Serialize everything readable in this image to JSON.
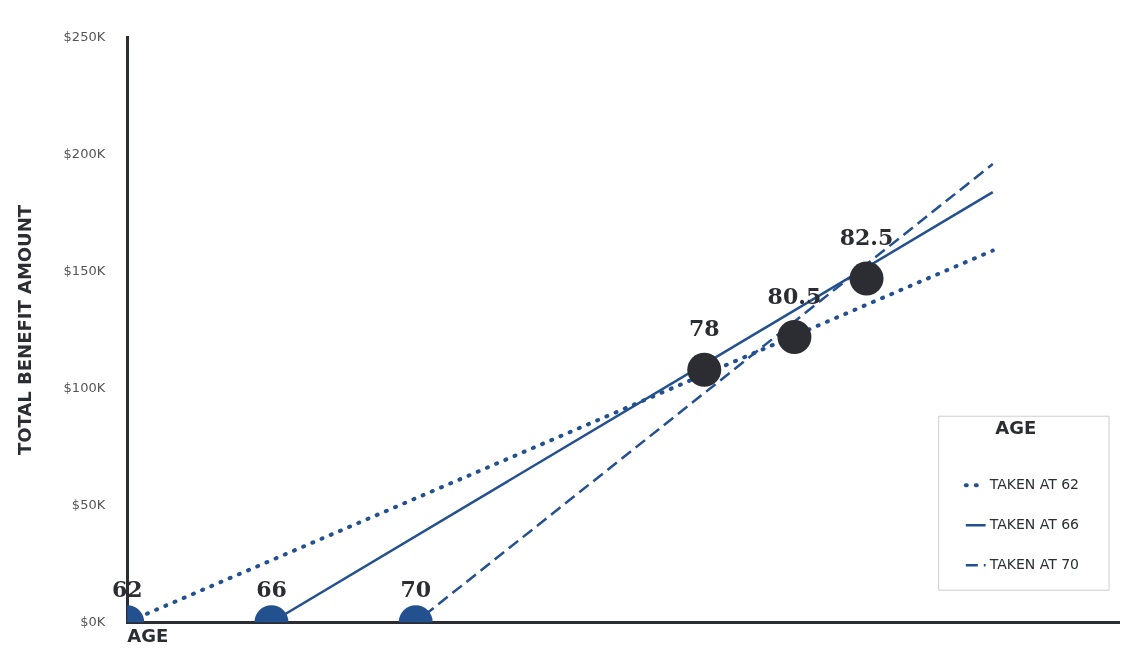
{
  "chart_data": {
    "type": "line",
    "ylabel": "TOTAL BENEFIT AMOUNT",
    "xlabel": "AGE",
    "legend_title": "AGE",
    "legend": "bottom right",
    "grid": false,
    "xlim": [
      62,
      89.5
    ],
    "ylim": [
      0,
      250
    ],
    "xticks": [
      62,
      66,
      70
    ],
    "yticks": [
      {
        "value": 0,
        "label": "$0K"
      },
      {
        "value": 50,
        "label": "$50K"
      },
      {
        "value": 100,
        "label": "$100K"
      },
      {
        "value": 150,
        "label": "$150K"
      },
      {
        "value": 200,
        "label": "$200K"
      },
      {
        "value": 250,
        "label": "$250K"
      }
    ],
    "series": [
      {
        "name": "TAKEN AT 62",
        "color": "#23508f",
        "line_style": "dotted",
        "marker": "none",
        "x": [
          62,
          86
        ],
        "values": [
          0,
          159
        ]
      },
      {
        "name": "TAKEN AT 66",
        "color": "#23508f",
        "line_style": "solid",
        "marker": "none",
        "x": [
          66,
          86
        ],
        "values": [
          0,
          184
        ]
      },
      {
        "name": "TAKEN AT 70",
        "color": "#23508f",
        "line_style": "dashed",
        "marker": "none",
        "x": [
          70,
          86
        ],
        "values": [
          0,
          196
        ]
      },
      {
        "type": "scatter",
        "color": "#23508f",
        "marker": "circle",
        "x": [
          62,
          66,
          70
        ],
        "values": [
          0,
          0,
          0
        ]
      },
      {
        "type": "scatter",
        "color": "#2b2d33",
        "marker": "circle",
        "x": [
          78,
          80.5,
          82.5
        ],
        "values": [
          108,
          122,
          147
        ]
      }
    ],
    "annotations": [
      {
        "text": "78",
        "x": 78,
        "y": 108
      },
      {
        "text": "80.5",
        "x": 80.5,
        "y": 122
      },
      {
        "text": "82.5",
        "x": 82.5,
        "y": 147
      }
    ]
  }
}
